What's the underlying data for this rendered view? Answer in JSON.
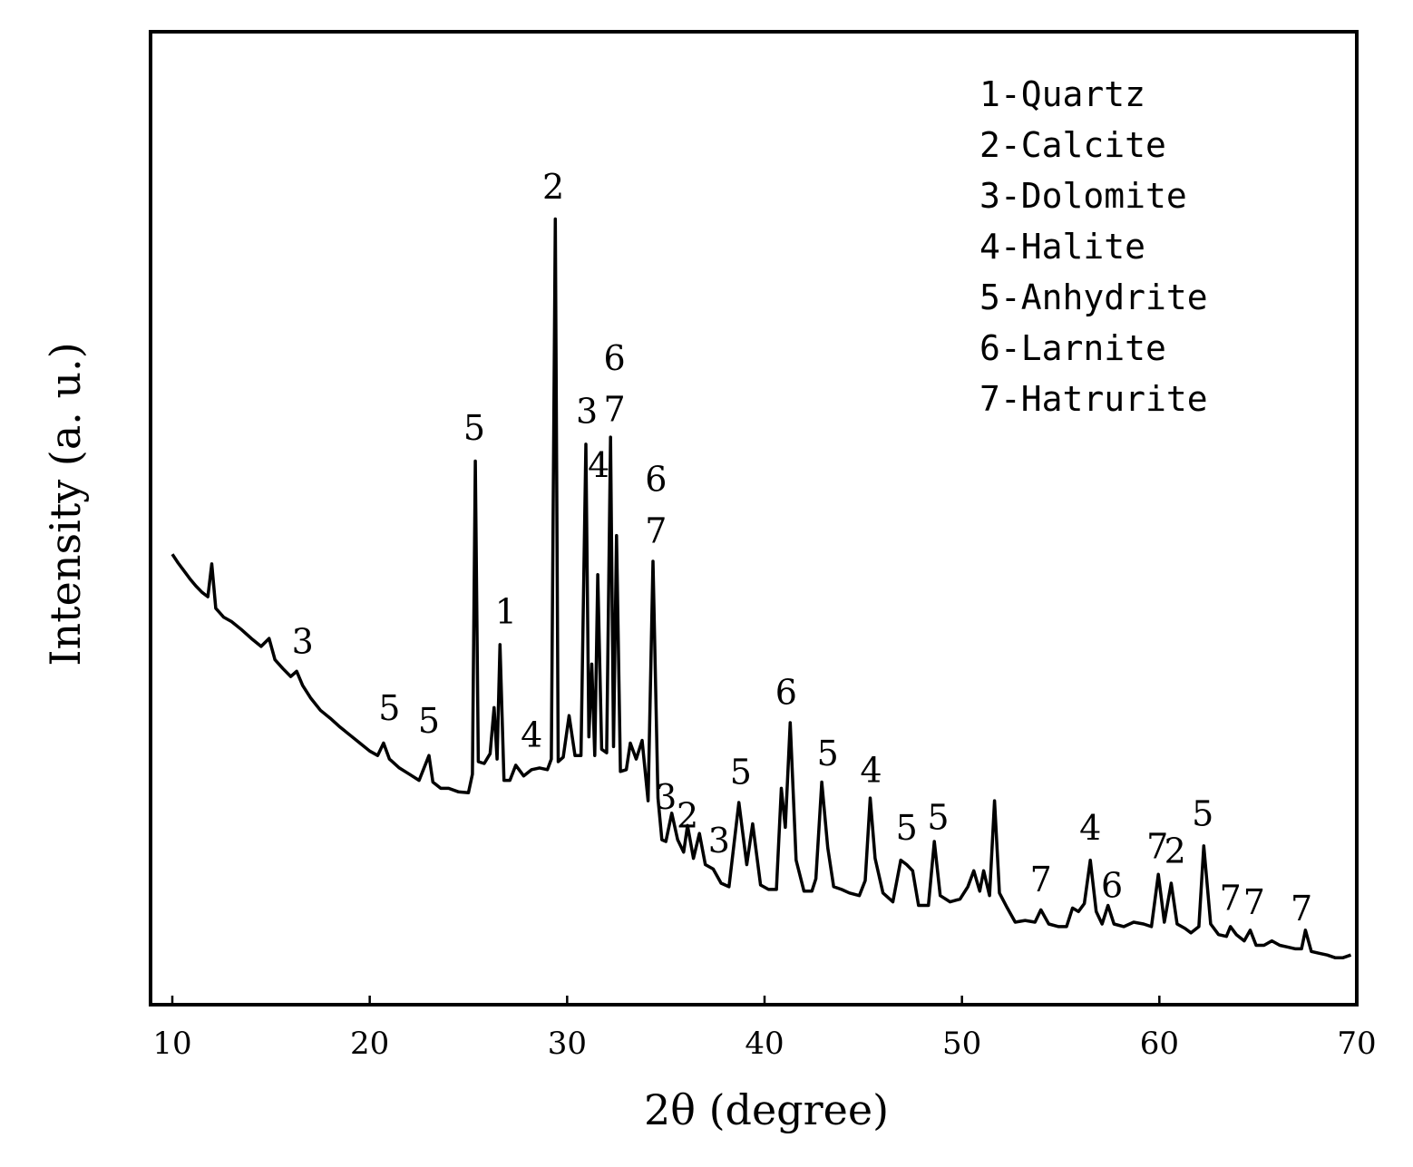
{
  "chart_data": {
    "type": "line",
    "xlabel": "2θ (degree)",
    "ylabel": "Intensity (a. u.)",
    "xlim": [
      9,
      70
    ],
    "ylim": [
      0,
      100
    ],
    "x_ticks": [
      10,
      20,
      30,
      40,
      50,
      60,
      70
    ],
    "y_ticks_shown": false,
    "grid": false,
    "legend_placement": "top-right",
    "legend": [
      "1-Quartz",
      "2-Calcite",
      "3-Dolomite",
      "4-Halite",
      "5-Anhydrite",
      "6-Larnite",
      "7-Hatrurite"
    ],
    "series": [
      {
        "points": [
          [
            10.0,
            50.8
          ],
          [
            10.3,
            49.8
          ],
          [
            10.6,
            48.9
          ],
          [
            10.9,
            48.0
          ],
          [
            11.2,
            47.2
          ],
          [
            11.5,
            46.5
          ],
          [
            11.8,
            46.0
          ],
          [
            12.0,
            49.7
          ],
          [
            12.2,
            44.7
          ],
          [
            12.6,
            43.7
          ],
          [
            13.0,
            43.2
          ],
          [
            13.5,
            42.3
          ],
          [
            14.0,
            41.3
          ],
          [
            14.5,
            40.4
          ],
          [
            14.9,
            41.3
          ],
          [
            15.2,
            38.9
          ],
          [
            15.6,
            37.9
          ],
          [
            16.0,
            37.0
          ],
          [
            16.3,
            37.6
          ],
          [
            16.6,
            36.0
          ],
          [
            17.0,
            34.6
          ],
          [
            17.5,
            33.2
          ],
          [
            18.0,
            32.3
          ],
          [
            18.5,
            31.3
          ],
          [
            19.0,
            30.4
          ],
          [
            19.5,
            29.5
          ],
          [
            20.0,
            28.6
          ],
          [
            20.4,
            28.1
          ],
          [
            20.7,
            29.5
          ],
          [
            21.0,
            27.7
          ],
          [
            21.5,
            26.7
          ],
          [
            22.0,
            26.0
          ],
          [
            22.5,
            25.3
          ],
          [
            23.0,
            28.1
          ],
          [
            23.2,
            25.1
          ],
          [
            23.6,
            24.4
          ],
          [
            24.0,
            24.4
          ],
          [
            24.5,
            24.0
          ],
          [
            25.0,
            23.9
          ],
          [
            25.2,
            26.0
          ],
          [
            25.35,
            61.3
          ],
          [
            25.5,
            27.4
          ],
          [
            25.8,
            27.2
          ],
          [
            26.1,
            28.3
          ],
          [
            26.3,
            33.5
          ],
          [
            26.45,
            27.7
          ],
          [
            26.6,
            40.6
          ],
          [
            26.8,
            25.3
          ],
          [
            27.1,
            25.3
          ],
          [
            27.4,
            27.0
          ],
          [
            27.8,
            25.8
          ],
          [
            28.2,
            26.5
          ],
          [
            28.6,
            26.7
          ],
          [
            29.0,
            26.5
          ],
          [
            29.2,
            27.7
          ],
          [
            29.4,
            88.6
          ],
          [
            29.55,
            27.4
          ],
          [
            29.8,
            27.9
          ],
          [
            30.1,
            32.6
          ],
          [
            30.4,
            28.1
          ],
          [
            30.7,
            28.1
          ],
          [
            30.95,
            63.2
          ],
          [
            31.1,
            30.2
          ],
          [
            31.25,
            38.4
          ],
          [
            31.4,
            28.1
          ],
          [
            31.55,
            48.5
          ],
          [
            31.75,
            28.8
          ],
          [
            32.0,
            28.4
          ],
          [
            32.2,
            64.0
          ],
          [
            32.35,
            29.1
          ],
          [
            32.5,
            52.9
          ],
          [
            32.7,
            26.3
          ],
          [
            33.0,
            26.5
          ],
          [
            33.2,
            29.5
          ],
          [
            33.5,
            27.7
          ],
          [
            33.8,
            29.8
          ],
          [
            34.1,
            23.0
          ],
          [
            34.35,
            50.0
          ],
          [
            34.6,
            23.3
          ],
          [
            34.8,
            18.6
          ],
          [
            35.0,
            18.4
          ],
          [
            35.3,
            21.6
          ],
          [
            35.6,
            18.6
          ],
          [
            35.9,
            17.2
          ],
          [
            36.1,
            20.2
          ],
          [
            36.4,
            16.5
          ],
          [
            36.7,
            19.3
          ],
          [
            37.0,
            15.8
          ],
          [
            37.4,
            15.3
          ],
          [
            37.8,
            13.7
          ],
          [
            38.2,
            13.3
          ],
          [
            38.7,
            22.8
          ],
          [
            39.1,
            15.8
          ],
          [
            39.4,
            20.4
          ],
          [
            39.8,
            13.5
          ],
          [
            40.2,
            13.0
          ],
          [
            40.6,
            13.0
          ],
          [
            40.85,
            24.4
          ],
          [
            41.05,
            20.0
          ],
          [
            41.3,
            31.8
          ],
          [
            41.6,
            16.3
          ],
          [
            42.0,
            12.8
          ],
          [
            42.4,
            12.8
          ],
          [
            42.6,
            14.2
          ],
          [
            42.9,
            25.1
          ],
          [
            43.2,
            17.7
          ],
          [
            43.5,
            13.3
          ],
          [
            43.9,
            13.0
          ],
          [
            44.3,
            12.6
          ],
          [
            44.8,
            12.3
          ],
          [
            45.1,
            14.0
          ],
          [
            45.35,
            23.3
          ],
          [
            45.6,
            16.5
          ],
          [
            46.0,
            12.6
          ],
          [
            46.5,
            11.6
          ],
          [
            46.9,
            16.3
          ],
          [
            47.2,
            15.8
          ],
          [
            47.5,
            15.1
          ],
          [
            47.8,
            11.2
          ],
          [
            48.3,
            11.2
          ],
          [
            48.6,
            18.4
          ],
          [
            48.9,
            12.3
          ],
          [
            49.4,
            11.6
          ],
          [
            49.9,
            11.9
          ],
          [
            50.3,
            13.3
          ],
          [
            50.6,
            15.1
          ],
          [
            50.9,
            12.8
          ],
          [
            51.1,
            15.1
          ],
          [
            51.4,
            12.3
          ],
          [
            51.65,
            23.0
          ],
          [
            51.9,
            12.6
          ],
          [
            52.3,
            10.9
          ],
          [
            52.7,
            9.3
          ],
          [
            53.2,
            9.5
          ],
          [
            53.7,
            9.3
          ],
          [
            54.0,
            10.7
          ],
          [
            54.4,
            9.1
          ],
          [
            54.9,
            8.8
          ],
          [
            55.3,
            8.8
          ],
          [
            55.6,
            10.9
          ],
          [
            55.9,
            10.5
          ],
          [
            56.2,
            11.4
          ],
          [
            56.5,
            16.3
          ],
          [
            56.8,
            10.5
          ],
          [
            57.1,
            9.1
          ],
          [
            57.4,
            11.2
          ],
          [
            57.7,
            9.1
          ],
          [
            58.2,
            8.8
          ],
          [
            58.7,
            9.3
          ],
          [
            59.2,
            9.1
          ],
          [
            59.6,
            8.8
          ],
          [
            59.95,
            14.7
          ],
          [
            60.25,
            9.3
          ],
          [
            60.6,
            13.7
          ],
          [
            60.9,
            9.1
          ],
          [
            61.3,
            8.6
          ],
          [
            61.6,
            8.1
          ],
          [
            62.0,
            8.8
          ],
          [
            62.25,
            17.9
          ],
          [
            62.6,
            9.1
          ],
          [
            63.0,
            7.9
          ],
          [
            63.4,
            7.7
          ],
          [
            63.6,
            8.8
          ],
          [
            63.9,
            7.9
          ],
          [
            64.3,
            7.2
          ],
          [
            64.6,
            8.4
          ],
          [
            64.9,
            6.7
          ],
          [
            65.3,
            6.7
          ],
          [
            65.7,
            7.2
          ],
          [
            66.1,
            6.7
          ],
          [
            66.5,
            6.5
          ],
          [
            66.9,
            6.3
          ],
          [
            67.2,
            6.3
          ],
          [
            67.4,
            8.4
          ],
          [
            67.7,
            6.0
          ],
          [
            68.1,
            5.8
          ],
          [
            68.5,
            5.6
          ],
          [
            68.9,
            5.3
          ],
          [
            69.3,
            5.3
          ],
          [
            69.7,
            5.6
          ]
        ]
      }
    ],
    "peak_labels": [
      {
        "text": "3",
        "x": 16.6,
        "y": 39.6
      },
      {
        "text": "5",
        "x": 21.0,
        "y": 32.1
      },
      {
        "text": "5",
        "x": 23.0,
        "y": 30.7
      },
      {
        "text": "5",
        "x": 25.3,
        "y": 63.7
      },
      {
        "text": "1",
        "x": 26.9,
        "y": 43.0
      },
      {
        "text": "4",
        "x": 28.2,
        "y": 29.1
      },
      {
        "text": "2",
        "x": 29.3,
        "y": 90.9
      },
      {
        "text": "3",
        "x": 31.0,
        "y": 65.6
      },
      {
        "text": "4",
        "x": 31.6,
        "y": 59.5
      },
      {
        "text": "6",
        "x": 32.4,
        "y": 71.6
      },
      {
        "text": "7",
        "x": 32.4,
        "y": 65.8
      },
      {
        "text": "6",
        "x": 34.5,
        "y": 57.9
      },
      {
        "text": "7",
        "x": 34.5,
        "y": 52.1
      },
      {
        "text": "3",
        "x": 35.0,
        "y": 22.1
      },
      {
        "text": "2",
        "x": 36.1,
        "y": 20.0
      },
      {
        "text": "3",
        "x": 37.7,
        "y": 17.2
      },
      {
        "text": "5",
        "x": 38.8,
        "y": 24.9
      },
      {
        "text": "6",
        "x": 41.1,
        "y": 33.9
      },
      {
        "text": "5",
        "x": 43.2,
        "y": 27.0
      },
      {
        "text": "4",
        "x": 45.4,
        "y": 25.1
      },
      {
        "text": "5",
        "x": 47.2,
        "y": 18.6
      },
      {
        "text": "5",
        "x": 48.8,
        "y": 19.8
      },
      {
        "text": "7",
        "x": 54.0,
        "y": 12.8
      },
      {
        "text": "4",
        "x": 56.5,
        "y": 18.6
      },
      {
        "text": "6",
        "x": 57.6,
        "y": 12.1
      },
      {
        "text": "7",
        "x": 59.9,
        "y": 16.5
      },
      {
        "text": "2",
        "x": 60.8,
        "y": 16.0
      },
      {
        "text": "5",
        "x": 62.2,
        "y": 20.2
      },
      {
        "text": "7",
        "x": 63.6,
        "y": 10.7
      },
      {
        "text": "7",
        "x": 64.8,
        "y": 10.2
      },
      {
        "text": "7",
        "x": 67.2,
        "y": 9.5
      }
    ]
  }
}
